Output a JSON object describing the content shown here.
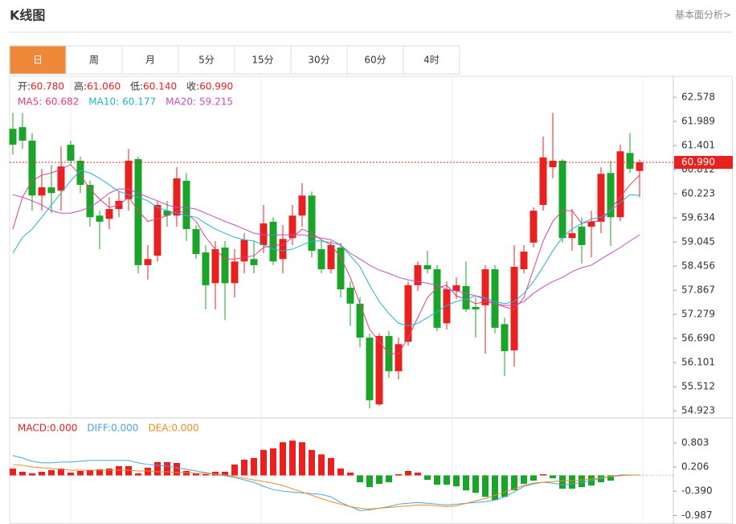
{
  "header": {
    "title": "K线图",
    "link": "基本面分析>"
  },
  "tabs": [
    "日",
    "周",
    "月",
    "5分",
    "15分",
    "30分",
    "60分",
    "4时"
  ],
  "active_tab": 0,
  "chart_data": [
    {
      "type": "candlestick",
      "up_color": "#e8201f",
      "down_color": "#1aa52a",
      "info": [
        {
          "label": "开:",
          "value": "60.780"
        },
        {
          "label": "高:",
          "value": "61.060"
        },
        {
          "label": "低:",
          "value": "60.140"
        },
        {
          "label": "收:",
          "value": "60.990"
        }
      ],
      "open": [
        61.81,
        61.85,
        61.52,
        60.18,
        60.38,
        60.3,
        61.42,
        61.03,
        60.44,
        59.69,
        59.61,
        59.85,
        60.09,
        61.07,
        58.48,
        58.71,
        59.81,
        59.69,
        60.54,
        59.36,
        58.79,
        58.04,
        58.91,
        58.04,
        58.57,
        58.63,
        58.97,
        59.54,
        58.63,
        59.14,
        59.69,
        60.18,
        58.87,
        58.38,
        58.91,
        57.93,
        57.54,
        56.71,
        55.08,
        56.75,
        55.89,
        56.61,
        57.99,
        58.48,
        58.38,
        57.06,
        57.85,
        57.97,
        57.46,
        57.5,
        58.38,
        57.04,
        56.4,
        58.38,
        59.03,
        59.95,
        60.87,
        61.03,
        59.14,
        59.42,
        59.42,
        59.54,
        60.73,
        59.65,
        61.22,
        60.78
      ],
      "high": [
        62.2,
        62.2,
        61.71,
        60.83,
        60.93,
        61.38,
        61.52,
        61.13,
        60.54,
        59.81,
        60.14,
        60.28,
        61.32,
        61.13,
        58.97,
        60.05,
        60.05,
        60.87,
        60.73,
        59.46,
        58.97,
        59.07,
        59.07,
        58.87,
        59.26,
        59.07,
        59.95,
        59.65,
        59.46,
        59.95,
        60.48,
        60.28,
        59.07,
        59.07,
        59.03,
        58.08,
        57.69,
        56.81,
        56.81,
        56.87,
        56.71,
        58.08,
        58.57,
        58.83,
        58.48,
        58.08,
        58.18,
        58.57,
        57.69,
        58.48,
        58.48,
        57.2,
        58.97,
        58.97,
        59.89,
        61.62,
        62.2,
        61.07,
        59.85,
        59.65,
        59.81,
        60.87,
        61.03,
        61.42,
        61.71,
        61.06
      ],
      "low": [
        61.18,
        61.32,
        59.81,
        59.81,
        59.75,
        59.81,
        60.93,
        60.24,
        59.42,
        58.87,
        59.36,
        59.65,
        59.81,
        58.28,
        58.12,
        58.57,
        59.42,
        59.42,
        59.07,
        58.63,
        57.4,
        57.4,
        57.14,
        57.69,
        58.28,
        58.28,
        58.77,
        58.48,
        58.28,
        58.97,
        59.42,
        58.67,
        58.28,
        58.28,
        57.69,
        57.0,
        56.47,
        54.98,
        55.04,
        55.73,
        55.69,
        56.51,
        57.85,
        58.28,
        56.87,
        56.91,
        57.65,
        57.34,
        56.71,
        56.32,
        56.81,
        55.77,
        56.0,
        58.28,
        58.91,
        59.81,
        60.6,
        59.03,
        58.83,
        58.52,
        58.67,
        59.26,
        58.95,
        59.55,
        60.73,
        60.14
      ],
      "close": [
        61.42,
        61.52,
        60.18,
        60.38,
        60.24,
        60.89,
        61.03,
        60.44,
        59.65,
        59.54,
        59.85,
        60.05,
        61.03,
        58.48,
        58.63,
        59.95,
        59.69,
        60.6,
        59.36,
        58.75,
        57.99,
        58.87,
        58.04,
        58.57,
        59.1,
        58.48,
        59.5,
        58.57,
        59.12,
        59.69,
        60.18,
        58.83,
        58.38,
        58.97,
        57.89,
        57.54,
        56.71,
        55.18,
        56.75,
        55.89,
        56.55,
        57.99,
        58.48,
        58.38,
        56.95,
        57.89,
        57.99,
        57.4,
        57.4,
        58.38,
        56.95,
        56.38,
        58.44,
        58.81,
        59.81,
        61.11,
        61.03,
        59.14,
        59.26,
        58.97,
        59.54,
        60.71,
        59.65,
        61.26,
        60.83,
        60.99
      ],
      "ma": [
        {
          "name": "MA5:",
          "value_label": "60.682",
          "color": "#e0407a",
          "values": [
            59.36,
            60.14,
            60.54,
            60.68,
            60.73,
            60.83,
            60.93,
            60.68,
            60.34,
            60.09,
            59.89,
            59.95,
            60.14,
            59.81,
            59.55,
            59.61,
            59.69,
            59.81,
            59.75,
            59.55,
            59.16,
            58.87,
            58.63,
            58.63,
            58.67,
            58.71,
            58.91,
            58.97,
            58.97,
            59.16,
            59.36,
            59.26,
            59.1,
            58.97,
            58.67,
            58.18,
            57.54,
            56.91,
            56.61,
            56.32,
            56.32,
            56.71,
            57.2,
            57.69,
            57.93,
            57.99,
            57.73,
            57.65,
            57.54,
            57.59,
            57.54,
            57.46,
            57.4,
            57.69,
            58.38,
            59.07,
            59.55,
            59.81,
            59.81,
            59.5,
            59.55,
            59.55,
            59.85,
            60.14,
            60.44,
            60.68
          ]
        },
        {
          "name": "MA10:",
          "value_label": "60.177",
          "color": "#1fb5d0",
          "values": [
            58.77,
            59.16,
            59.36,
            59.65,
            59.95,
            60.24,
            60.54,
            60.79,
            60.73,
            60.6,
            60.44,
            60.28,
            60.2,
            60.14,
            60.05,
            59.89,
            59.81,
            59.75,
            59.69,
            59.65,
            59.5,
            59.36,
            59.26,
            59.16,
            59.1,
            59.07,
            58.97,
            58.87,
            58.83,
            58.87,
            58.97,
            59.07,
            59.07,
            59.03,
            58.97,
            58.71,
            58.44,
            57.99,
            57.59,
            57.3,
            57.06,
            57.0,
            57.06,
            57.2,
            57.34,
            57.5,
            57.59,
            57.65,
            57.73,
            57.69,
            57.59,
            57.54,
            57.59,
            57.79,
            58.08,
            58.44,
            58.83,
            59.16,
            59.36,
            59.5,
            59.61,
            59.65,
            59.81,
            60.01,
            60.2,
            60.18
          ]
        },
        {
          "name": "MA20:",
          "value_label": "59.215",
          "color": "#c050c0",
          "values": [
            60.2,
            60.14,
            60.05,
            59.95,
            59.81,
            59.75,
            59.75,
            59.81,
            59.89,
            60.05,
            60.24,
            60.34,
            60.34,
            60.24,
            60.14,
            60.05,
            59.95,
            59.89,
            59.89,
            59.85,
            59.75,
            59.65,
            59.55,
            59.46,
            59.36,
            59.26,
            59.22,
            59.22,
            59.22,
            59.22,
            59.22,
            59.18,
            59.14,
            59.1,
            58.97,
            58.77,
            58.63,
            58.48,
            58.36,
            58.28,
            58.18,
            58.12,
            58.08,
            58.04,
            57.99,
            57.89,
            57.85,
            57.79,
            57.73,
            57.65,
            57.54,
            57.5,
            57.5,
            57.59,
            57.79,
            57.95,
            58.08,
            58.18,
            58.32,
            58.42,
            58.48,
            58.63,
            58.77,
            58.91,
            59.07,
            59.22
          ]
        }
      ],
      "last_price": {
        "value": 60.99,
        "label": "60.990"
      },
      "ylim": [
        54.75,
        63.09
      ],
      "yticks": [
        62.578,
        61.989,
        61.401,
        60.812,
        60.223,
        59.634,
        59.045,
        58.456,
        57.867,
        57.279,
        {
          "value": 56.69,
          "label": "56.690"
        },
        56.101,
        55.512,
        54.923
      ]
    },
    {
      "type": "macd",
      "up_color": "#e8201f",
      "down_color": "#1aa52a",
      "histogram": {
        "name": "MACD:",
        "value_label": "0.000",
        "color": "#e8201f",
        "values": [
          0.17,
          0.09,
          0.05,
          0.09,
          0.13,
          0.17,
          0.07,
          0.11,
          0.13,
          0.15,
          0.17,
          0.23,
          0.23,
          0.05,
          0.19,
          0.33,
          0.33,
          0.31,
          0.11,
          0.05,
          0.03,
          0.09,
          0.09,
          0.27,
          0.39,
          0.43,
          0.63,
          0.67,
          0.82,
          0.86,
          0.82,
          0.63,
          0.52,
          0.43,
          0.17,
          0.07,
          -0.17,
          -0.29,
          -0.21,
          -0.17,
          0.03,
          0.11,
          0.07,
          -0.11,
          -0.23,
          -0.23,
          -0.27,
          -0.37,
          -0.43,
          -0.53,
          -0.61,
          -0.53,
          -0.37,
          -0.21,
          -0.13,
          0.03,
          -0.07,
          -0.33,
          -0.33,
          -0.29,
          -0.25,
          -0.17,
          -0.13,
          0.01,
          0.02,
          0.0
        ]
      },
      "series": [
        {
          "name": "DIFF:",
          "value_label": "0.000",
          "color": "#4aa3e0",
          "values": [
            0.49,
            0.43,
            0.35,
            0.31,
            0.31,
            0.33,
            0.33,
            0.35,
            0.37,
            0.37,
            0.37,
            0.37,
            0.37,
            0.31,
            0.27,
            0.25,
            0.23,
            0.19,
            0.15,
            0.11,
            0.07,
            0.03,
            -0.01,
            -0.05,
            -0.11,
            -0.17,
            -0.27,
            -0.35,
            -0.39,
            -0.41,
            -0.43,
            -0.45,
            -0.47,
            -0.53,
            -0.67,
            -0.77,
            -0.87,
            -0.85,
            -0.81,
            -0.77,
            -0.71,
            -0.69,
            -0.67,
            -0.69,
            -0.71,
            -0.73,
            -0.71,
            -0.69,
            -0.67,
            -0.65,
            -0.61,
            -0.53,
            -0.41,
            -0.27,
            -0.21,
            -0.17,
            -0.19,
            -0.23,
            -0.21,
            -0.17,
            -0.13,
            -0.07,
            -0.03,
            0.01,
            0.01,
            0.01
          ]
        },
        {
          "name": "DEA:",
          "value_label": "0.000",
          "color": "#f08a20",
          "values": [
            0.27,
            0.25,
            0.21,
            0.19,
            0.17,
            0.15,
            0.13,
            0.13,
            0.13,
            0.13,
            0.13,
            0.13,
            0.13,
            0.11,
            0.11,
            0.09,
            0.09,
            0.07,
            0.07,
            0.05,
            0.05,
            0.03,
            0.01,
            -0.03,
            -0.07,
            -0.11,
            -0.15,
            -0.19,
            -0.25,
            -0.33,
            -0.41,
            -0.49,
            -0.57,
            -0.65,
            -0.71,
            -0.77,
            -0.81,
            -0.83,
            -0.81,
            -0.79,
            -0.77,
            -0.75,
            -0.73,
            -0.73,
            -0.75,
            -0.77,
            -0.75,
            -0.69,
            -0.63,
            -0.57,
            -0.49,
            -0.41,
            -0.33,
            -0.25,
            -0.19,
            -0.17,
            -0.15,
            -0.13,
            -0.13,
            -0.11,
            -0.09,
            -0.05,
            -0.03,
            -0.01,
            0.01,
            0.01
          ]
        }
      ],
      "ylim": [
        -1.2,
        1.42
      ],
      "yticks": [
        0.803,
        0.206,
        {
          "value": -0.39,
          "label": "-0.390"
        },
        -0.987
      ]
    }
  ]
}
